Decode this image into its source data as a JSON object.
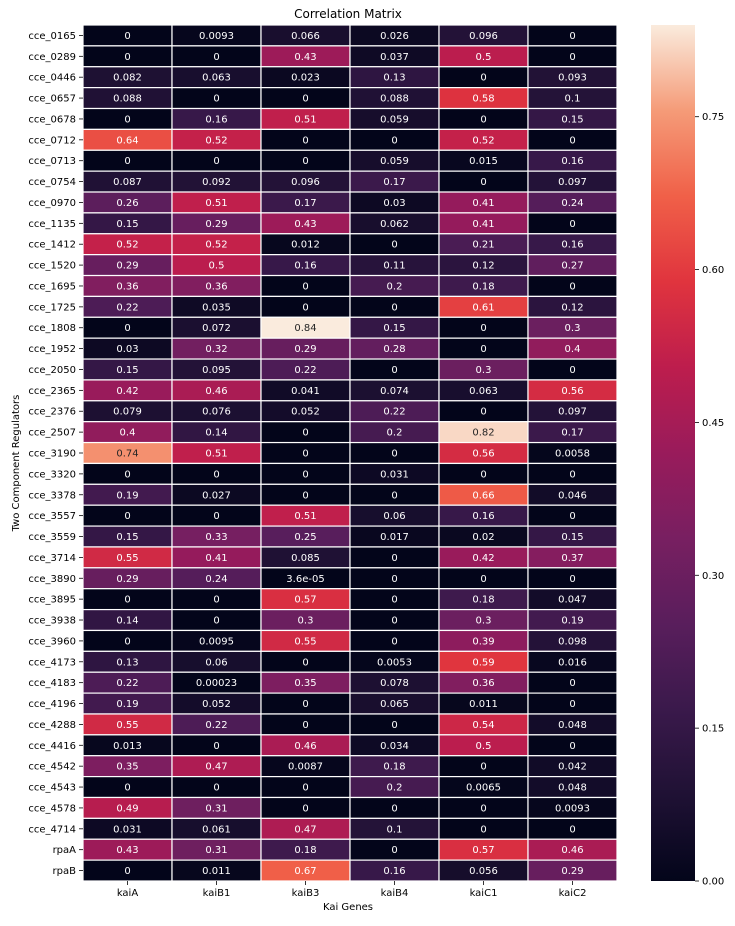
{
  "chart_data": {
    "type": "heatmap",
    "title": "Correlation Matrix",
    "xlabel": "Kai Genes",
    "ylabel": "Two Component Regulators",
    "columns": [
      "kaiA",
      "kaiB1",
      "kaiB3",
      "kaiB4",
      "kaiC1",
      "kaiC2"
    ],
    "rows": [
      "cce_0165",
      "cce_0289",
      "cce_0446",
      "cce_0657",
      "cce_0678",
      "cce_0712",
      "cce_0713",
      "cce_0754",
      "cce_0970",
      "cce_1135",
      "cce_1412",
      "cce_1520",
      "cce_1695",
      "cce_1725",
      "cce_1808",
      "cce_1952",
      "cce_2050",
      "cce_2365",
      "cce_2376",
      "cce_2507",
      "cce_3190",
      "cce_3320",
      "cce_3378",
      "cce_3557",
      "cce_3559",
      "cce_3714",
      "cce_3890",
      "cce_3895",
      "cce_3938",
      "cce_3960",
      "cce_4173",
      "cce_4183",
      "cce_4196",
      "cce_4288",
      "cce_4416",
      "cce_4542",
      "cce_4543",
      "cce_4578",
      "cce_4714",
      "rpaA",
      "rpaB"
    ],
    "values": [
      [
        0,
        0.0093,
        0.066,
        0.026,
        0.096,
        0
      ],
      [
        0,
        0,
        0.43,
        0.037,
        0.5,
        0
      ],
      [
        0.082,
        0.063,
        0.023,
        0.13,
        0,
        0.093
      ],
      [
        0.088,
        0,
        0,
        0.088,
        0.58,
        0.1
      ],
      [
        0,
        0.16,
        0.51,
        0.059,
        0,
        0.15
      ],
      [
        0.64,
        0.52,
        0,
        0,
        0.52,
        0
      ],
      [
        0,
        0,
        0,
        0.059,
        0.015,
        0.16
      ],
      [
        0.087,
        0.092,
        0.096,
        0.17,
        0,
        0.097
      ],
      [
        0.26,
        0.51,
        0.17,
        0.03,
        0.41,
        0.24
      ],
      [
        0.15,
        0.29,
        0.43,
        0.062,
        0.41,
        0
      ],
      [
        0.52,
        0.52,
        0.012,
        0,
        0.21,
        0.16
      ],
      [
        0.29,
        0.5,
        0.16,
        0.11,
        0.12,
        0.27
      ],
      [
        0.36,
        0.36,
        0,
        0.2,
        0.18,
        0
      ],
      [
        0.22,
        0.035,
        0,
        0,
        0.61,
        0.12
      ],
      [
        0,
        0.072,
        0.84,
        0.15,
        0,
        0.3
      ],
      [
        0.03,
        0.32,
        0.29,
        0.28,
        0,
        0.4
      ],
      [
        0.15,
        0.095,
        0.22,
        0,
        0.3,
        0
      ],
      [
        0.42,
        0.46,
        0.041,
        0.074,
        0.063,
        0.56
      ],
      [
        0.079,
        0.076,
        0.052,
        0.22,
        0,
        0.097
      ],
      [
        0.4,
        0.14,
        0,
        0.2,
        0.82,
        0.17
      ],
      [
        0.74,
        0.51,
        0,
        0,
        0.56,
        0.0058
      ],
      [
        0,
        0,
        0,
        0.031,
        0,
        0
      ],
      [
        0.19,
        0.027,
        0,
        0,
        0.66,
        0.046
      ],
      [
        0,
        0,
        0.51,
        0.06,
        0.16,
        0
      ],
      [
        0.15,
        0.33,
        0.25,
        0.017,
        0.02,
        0.15
      ],
      [
        0.55,
        0.41,
        0.085,
        0,
        0.42,
        0.37
      ],
      [
        0.29,
        0.24,
        "3.6e-05",
        0,
        0,
        0
      ],
      [
        0,
        0,
        0.57,
        0,
        0.18,
        0.047
      ],
      [
        0.14,
        0,
        0.3,
        0,
        0.3,
        0.19
      ],
      [
        0,
        0.0095,
        0.55,
        0,
        0.39,
        0.098
      ],
      [
        0.13,
        0.06,
        0,
        0.0053,
        0.59,
        0.016
      ],
      [
        0.22,
        0.00023,
        0.35,
        0.078,
        0.36,
        0
      ],
      [
        0.19,
        0.052,
        0,
        0.065,
        0.011,
        0
      ],
      [
        0.55,
        0.22,
        0,
        0,
        0.54,
        0.048
      ],
      [
        0.013,
        0,
        0.46,
        0.034,
        0.5,
        0
      ],
      [
        0.35,
        0.47,
        0.0087,
        0.18,
        0,
        0.042
      ],
      [
        0,
        0,
        0,
        0.2,
        0.0065,
        0.048
      ],
      [
        0.49,
        0.31,
        0,
        0,
        0,
        0.0093
      ],
      [
        0.031,
        0.061,
        0.47,
        0.1,
        0,
        0
      ],
      [
        0.43,
        0.31,
        0.18,
        0,
        0.57,
        0.46
      ],
      [
        0,
        0.011,
        0.67,
        0.16,
        0.056,
        0.29
      ]
    ],
    "colorbar": {
      "min": 0,
      "max": 0.84,
      "ticks": [
        "0.00",
        "0.15",
        "0.30",
        "0.45",
        "0.60",
        "0.75"
      ],
      "colormap": "rocket"
    },
    "grid": true
  }
}
